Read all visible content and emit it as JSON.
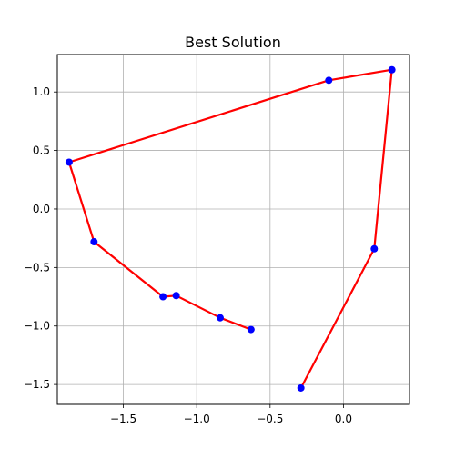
{
  "chart_data": {
    "type": "line",
    "title": "Best Solution",
    "xlabel": "",
    "ylabel": "",
    "xlim": [
      -1.95,
      0.45
    ],
    "ylim": [
      -1.67,
      1.32
    ],
    "xticks": [
      -1.5,
      -1.0,
      -0.5,
      0.0
    ],
    "xtick_labels": [
      "−1.5",
      "−1.0",
      "−0.5",
      "0.0"
    ],
    "yticks": [
      -1.5,
      -1.0,
      -0.5,
      0.0,
      0.5,
      1.0
    ],
    "ytick_labels": [
      "−1.5",
      "−1.0",
      "−0.5",
      "0.0",
      "0.5",
      "1.0"
    ],
    "grid": true,
    "series": [
      {
        "marker_color": "#0000ff",
        "line_color": "#ff0000",
        "points": [
          [
            -0.63,
            -1.03
          ],
          [
            -0.84,
            -0.93
          ],
          [
            -1.14,
            -0.74
          ],
          [
            -1.23,
            -0.75
          ],
          [
            -1.7,
            -0.28
          ],
          [
            -1.87,
            0.4
          ],
          [
            -0.1,
            1.1
          ],
          [
            0.33,
            1.19
          ],
          [
            0.21,
            -0.34
          ],
          [
            -0.29,
            -1.53
          ]
        ],
        "path_order": [
          0,
          1,
          2,
          3,
          4,
          5,
          6,
          7,
          8,
          9
        ]
      }
    ]
  }
}
